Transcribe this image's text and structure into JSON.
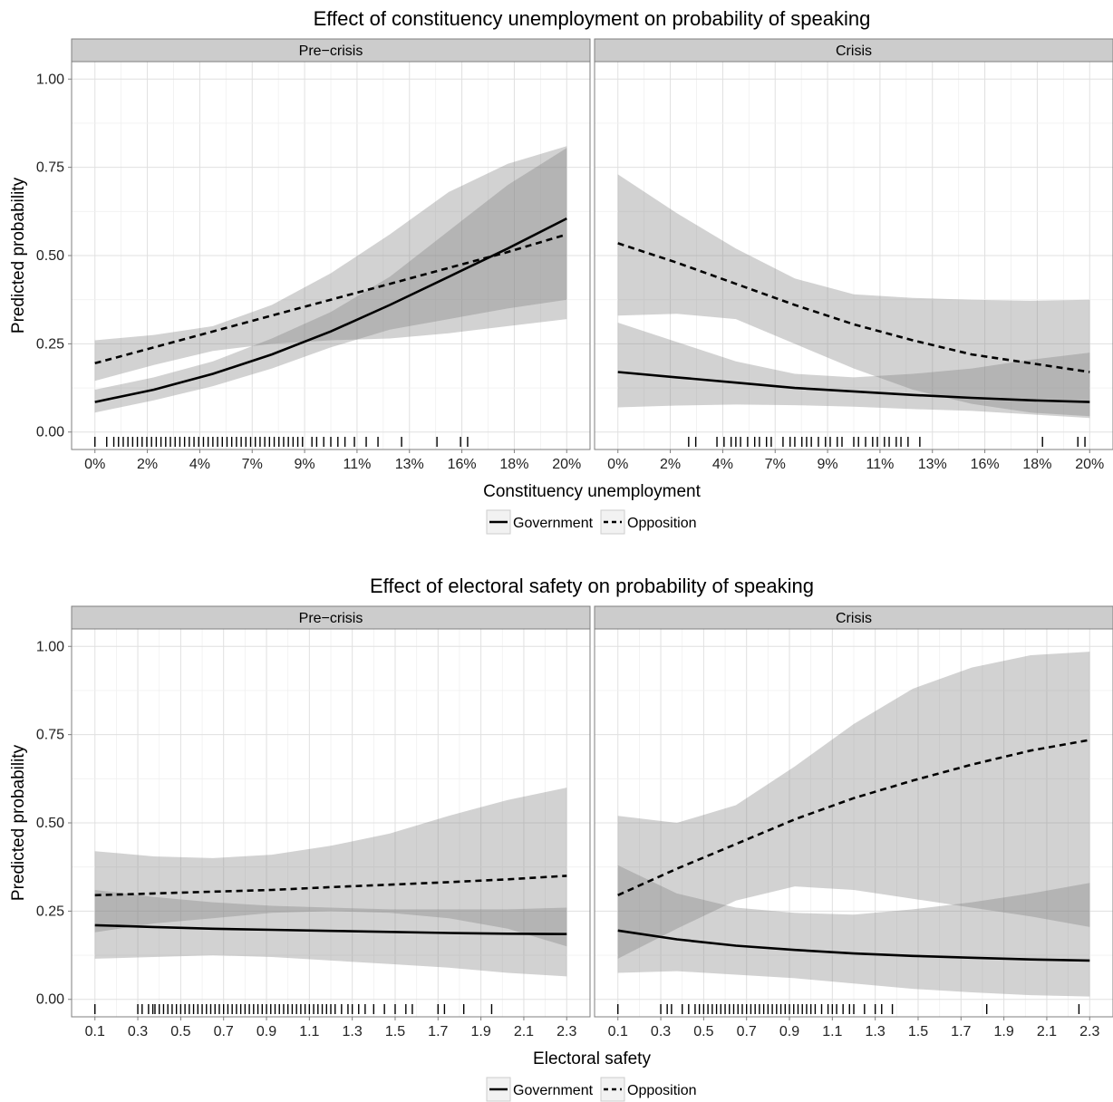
{
  "chart_data": [
    {
      "type": "line",
      "title": "Effect of constituency unemployment on probability of speaking",
      "xlabel": "Constituency unemployment",
      "ylabel": "Predicted probability",
      "ylim": [
        0,
        1
      ],
      "yticks": [
        "0.00",
        "0.25",
        "0.50",
        "0.75",
        "1.00"
      ],
      "xlim": [
        0,
        0.2
      ],
      "xticks": [
        "0%",
        "2%",
        "4%",
        "7%",
        "9%",
        "11%",
        "13%",
        "16%",
        "18%",
        "20%"
      ],
      "grid": true,
      "legend": {
        "position": "bottom",
        "entries": [
          "Government",
          "Opposition"
        ]
      },
      "panels": [
        {
          "strip": "Pre−crisis",
          "series": [
            {
              "name": "Government",
              "style": "solid",
              "x": [
                0,
                0.025,
                0.05,
                0.075,
                0.1,
                0.125,
                0.15,
                0.175,
                0.2
              ],
              "y": [
                0.085,
                0.12,
                0.165,
                0.22,
                0.285,
                0.36,
                0.44,
                0.52,
                0.605
              ],
              "lower": [
                0.055,
                0.09,
                0.13,
                0.18,
                0.24,
                0.29,
                0.32,
                0.35,
                0.375
              ],
              "upper": [
                0.12,
                0.155,
                0.2,
                0.265,
                0.34,
                0.44,
                0.57,
                0.7,
                0.805
              ]
            },
            {
              "name": "Opposition",
              "style": "dashed",
              "x": [
                0,
                0.025,
                0.05,
                0.075,
                0.1,
                0.125,
                0.15,
                0.175,
                0.2
              ],
              "y": [
                0.195,
                0.24,
                0.285,
                0.33,
                0.375,
                0.42,
                0.465,
                0.51,
                0.56
              ],
              "lower": [
                0.145,
                0.19,
                0.23,
                0.25,
                0.26,
                0.265,
                0.28,
                0.3,
                0.32
              ],
              "upper": [
                0.26,
                0.275,
                0.3,
                0.36,
                0.45,
                0.56,
                0.68,
                0.76,
                0.81
              ]
            }
          ],
          "rug": [
            0,
            0.005,
            0.008,
            0.01,
            0.012,
            0.014,
            0.016,
            0.018,
            0.02,
            0.022,
            0.024,
            0.026,
            0.028,
            0.03,
            0.032,
            0.034,
            0.036,
            0.038,
            0.04,
            0.042,
            0.044,
            0.046,
            0.048,
            0.05,
            0.052,
            0.054,
            0.056,
            0.058,
            0.06,
            0.062,
            0.064,
            0.066,
            0.068,
            0.07,
            0.072,
            0.074,
            0.076,
            0.078,
            0.08,
            0.082,
            0.084,
            0.086,
            0.088,
            0.092,
            0.094,
            0.097,
            0.1,
            0.103,
            0.106,
            0.11,
            0.115,
            0.12,
            0.13,
            0.145,
            0.155,
            0.158
          ]
        },
        {
          "strip": "Crisis",
          "series": [
            {
              "name": "Government",
              "style": "solid",
              "x": [
                0,
                0.025,
                0.05,
                0.075,
                0.1,
                0.125,
                0.15,
                0.175,
                0.2
              ],
              "y": [
                0.17,
                0.155,
                0.14,
                0.125,
                0.115,
                0.105,
                0.097,
                0.09,
                0.085
              ],
              "lower": [
                0.07,
                0.075,
                0.078,
                0.076,
                0.072,
                0.065,
                0.06,
                0.05,
                0.04
              ],
              "upper": [
                0.31,
                0.255,
                0.2,
                0.165,
                0.155,
                0.165,
                0.18,
                0.205,
                0.225
              ]
            },
            {
              "name": "Opposition",
              "style": "dashed",
              "x": [
                0,
                0.025,
                0.05,
                0.075,
                0.1,
                0.125,
                0.15,
                0.175,
                0.2
              ],
              "y": [
                0.535,
                0.48,
                0.42,
                0.36,
                0.305,
                0.26,
                0.22,
                0.195,
                0.17
              ],
              "lower": [
                0.33,
                0.335,
                0.32,
                0.25,
                0.18,
                0.12,
                0.08,
                0.055,
                0.045
              ],
              "upper": [
                0.73,
                0.62,
                0.52,
                0.435,
                0.39,
                0.38,
                0.375,
                0.372,
                0.375
              ]
            }
          ],
          "rug": [
            0.03,
            0.033,
            0.042,
            0.045,
            0.048,
            0.05,
            0.052,
            0.055,
            0.058,
            0.06,
            0.063,
            0.065,
            0.07,
            0.073,
            0.075,
            0.078,
            0.08,
            0.082,
            0.085,
            0.088,
            0.09,
            0.093,
            0.095,
            0.1,
            0.102,
            0.105,
            0.108,
            0.11,
            0.113,
            0.115,
            0.118,
            0.12,
            0.123,
            0.128,
            0.18,
            0.195,
            0.198
          ]
        }
      ]
    },
    {
      "type": "line",
      "title": "Effect of electoral safety on probability of speaking",
      "xlabel": "Electoral safety",
      "ylabel": "Predicted probability",
      "ylim": [
        0,
        1
      ],
      "yticks": [
        "0.00",
        "0.25",
        "0.50",
        "0.75",
        "1.00"
      ],
      "xlim": [
        0.1,
        2.3
      ],
      "xticks": [
        "0.1",
        "0.3",
        "0.5",
        "0.7",
        "0.9",
        "1.1",
        "1.3",
        "1.5",
        "1.7",
        "1.9",
        "2.1",
        "2.3"
      ],
      "grid": true,
      "legend": {
        "position": "bottom",
        "entries": [
          "Government",
          "Opposition"
        ]
      },
      "panels": [
        {
          "strip": "Pre−crisis",
          "series": [
            {
              "name": "Government",
              "style": "solid",
              "x": [
                0.1,
                0.375,
                0.65,
                0.925,
                1.2,
                1.475,
                1.75,
                2.025,
                2.3
              ],
              "y": [
                0.21,
                0.205,
                0.2,
                0.197,
                0.194,
                0.191,
                0.188,
                0.186,
                0.185
              ],
              "lower": [
                0.115,
                0.12,
                0.125,
                0.12,
                0.11,
                0.1,
                0.09,
                0.075,
                0.065
              ],
              "upper": [
                0.31,
                0.29,
                0.275,
                0.265,
                0.26,
                0.255,
                0.255,
                0.255,
                0.26
              ]
            },
            {
              "name": "Opposition",
              "style": "dashed",
              "x": [
                0.1,
                0.375,
                0.65,
                0.925,
                1.2,
                1.475,
                1.75,
                2.025,
                2.3
              ],
              "y": [
                0.295,
                0.3,
                0.305,
                0.31,
                0.318,
                0.325,
                0.332,
                0.34,
                0.35
              ],
              "lower": [
                0.19,
                0.215,
                0.23,
                0.245,
                0.25,
                0.245,
                0.23,
                0.2,
                0.15
              ],
              "upper": [
                0.42,
                0.405,
                0.4,
                0.41,
                0.435,
                0.47,
                0.52,
                0.565,
                0.6
              ]
            }
          ],
          "rug": [
            0.1,
            0.3,
            0.32,
            0.35,
            0.37,
            0.38,
            0.4,
            0.42,
            0.44,
            0.46,
            0.48,
            0.5,
            0.52,
            0.54,
            0.56,
            0.58,
            0.6,
            0.62,
            0.64,
            0.66,
            0.68,
            0.7,
            0.72,
            0.74,
            0.76,
            0.78,
            0.8,
            0.82,
            0.84,
            0.86,
            0.88,
            0.9,
            0.92,
            0.94,
            0.96,
            0.98,
            1.0,
            1.02,
            1.04,
            1.06,
            1.08,
            1.1,
            1.12,
            1.14,
            1.16,
            1.18,
            1.2,
            1.22,
            1.25,
            1.28,
            1.3,
            1.33,
            1.36,
            1.4,
            1.45,
            1.5,
            1.55,
            1.58,
            1.7,
            1.73,
            1.82,
            1.95
          ]
        },
        {
          "strip": "Crisis",
          "series": [
            {
              "name": "Government",
              "style": "solid",
              "x": [
                0.1,
                0.375,
                0.65,
                0.925,
                1.2,
                1.475,
                1.75,
                2.025,
                2.3
              ],
              "y": [
                0.195,
                0.17,
                0.152,
                0.14,
                0.13,
                0.123,
                0.118,
                0.113,
                0.11
              ],
              "lower": [
                0.075,
                0.08,
                0.07,
                0.06,
                0.045,
                0.03,
                0.02,
                0.012,
                0.008
              ],
              "upper": [
                0.38,
                0.3,
                0.26,
                0.245,
                0.24,
                0.255,
                0.275,
                0.3,
                0.33
              ]
            },
            {
              "name": "Opposition",
              "style": "dashed",
              "x": [
                0.1,
                0.375,
                0.65,
                0.925,
                1.2,
                1.475,
                1.75,
                2.025,
                2.3
              ],
              "y": [
                0.295,
                0.37,
                0.44,
                0.51,
                0.57,
                0.62,
                0.665,
                0.705,
                0.735
              ],
              "lower": [
                0.115,
                0.2,
                0.28,
                0.32,
                0.31,
                0.285,
                0.26,
                0.235,
                0.205
              ],
              "upper": [
                0.52,
                0.5,
                0.55,
                0.66,
                0.78,
                0.88,
                0.94,
                0.975,
                0.985
              ]
            }
          ],
          "rug": [
            0.1,
            0.3,
            0.33,
            0.35,
            0.4,
            0.43,
            0.46,
            0.48,
            0.5,
            0.52,
            0.54,
            0.56,
            0.58,
            0.6,
            0.62,
            0.64,
            0.66,
            0.68,
            0.7,
            0.72,
            0.74,
            0.76,
            0.78,
            0.8,
            0.82,
            0.84,
            0.86,
            0.88,
            0.9,
            0.92,
            0.94,
            0.96,
            0.98,
            1.0,
            1.02,
            1.05,
            1.08,
            1.1,
            1.12,
            1.15,
            1.18,
            1.2,
            1.25,
            1.3,
            1.33,
            1.38,
            1.82,
            2.25
          ]
        }
      ]
    }
  ]
}
